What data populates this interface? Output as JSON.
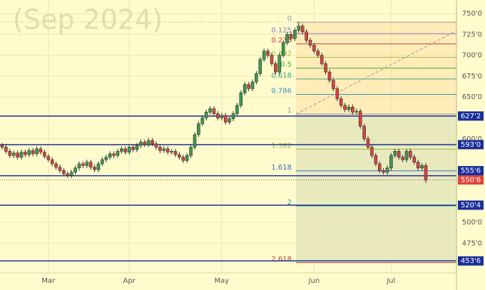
{
  "chart_data": {
    "type": "candlestick",
    "watermark": "(Sep 2024)",
    "categories": [
      null,
      null,
      null,
      null,
      null,
      null,
      null,
      null,
      null,
      null,
      null,
      null,
      "Mar",
      null,
      null,
      null,
      null,
      null,
      null,
      null,
      null,
      null,
      null,
      null,
      null,
      null,
      null,
      null,
      null,
      null,
      null,
      null,
      null,
      "Apr",
      null,
      null,
      null,
      null,
      null,
      null,
      null,
      null,
      null,
      null,
      null,
      null,
      null,
      null,
      null,
      null,
      null,
      null,
      null,
      null,
      null,
      null,
      null,
      "May",
      null,
      null,
      null,
      null,
      null,
      null,
      null,
      null,
      null,
      null,
      null,
      null,
      null,
      null,
      null,
      null,
      null,
      null,
      null,
      null,
      null,
      null,
      null,
      "Jun",
      null,
      null,
      null,
      null,
      null,
      null,
      null,
      null,
      null,
      null,
      null,
      null,
      null,
      null,
      null,
      null,
      null,
      null,
      null,
      "Jul",
      null,
      null,
      null,
      null,
      null,
      null,
      null,
      null,
      null
    ],
    "open": [
      592,
      590,
      585,
      580,
      583,
      578,
      584,
      581,
      586,
      582,
      588,
      584,
      579,
      575,
      570,
      566,
      562,
      558,
      556,
      560,
      565,
      570,
      568,
      572,
      566,
      563,
      570,
      575,
      578,
      582,
      580,
      585,
      588,
      584,
      590,
      587,
      592,
      596,
      593,
      598,
      594,
      590,
      586,
      588,
      584,
      585,
      581,
      578,
      574,
      580,
      590,
      605,
      618,
      625,
      632,
      636,
      630,
      625,
      628,
      620,
      624,
      630,
      640,
      655,
      665,
      660,
      668,
      678,
      695,
      705,
      700,
      690,
      680,
      700,
      715,
      725,
      720,
      730,
      735,
      728,
      718,
      712,
      705,
      700,
      690,
      680,
      670,
      660,
      648,
      640,
      635,
      638,
      632,
      633,
      615,
      600,
      590,
      580,
      570,
      562,
      560,
      565,
      580,
      585,
      578,
      575,
      585,
      578,
      572,
      565,
      568
    ],
    "high": [
      595,
      593,
      588,
      586,
      586,
      587,
      587,
      589,
      589,
      591,
      591,
      587,
      582,
      578,
      573,
      569,
      565,
      561,
      563,
      568,
      573,
      573,
      575,
      575,
      569,
      573,
      578,
      581,
      585,
      585,
      588,
      591,
      591,
      593,
      593,
      595,
      599,
      599,
      601,
      601,
      597,
      593,
      591,
      591,
      588,
      588,
      584,
      581,
      583,
      593,
      608,
      621,
      628,
      635,
      639,
      639,
      633,
      631,
      631,
      627,
      633,
      643,
      658,
      668,
      668,
      671,
      681,
      698,
      708,
      708,
      703,
      693,
      703,
      718,
      728,
      728,
      733,
      740,
      738,
      731,
      721,
      715,
      708,
      703,
      693,
      683,
      673,
      663,
      651,
      643,
      641,
      641,
      636,
      636,
      618,
      603,
      593,
      583,
      573,
      565,
      568,
      583,
      588,
      588,
      581,
      588,
      588,
      581,
      575,
      571,
      571
    ],
    "low": [
      587,
      582,
      577,
      577,
      575,
      575,
      578,
      578,
      579,
      579,
      581,
      576,
      572,
      567,
      563,
      559,
      555,
      553,
      553,
      557,
      562,
      565,
      565,
      563,
      560,
      560,
      567,
      572,
      575,
      577,
      577,
      582,
      581,
      581,
      584,
      584,
      589,
      590,
      590,
      591,
      587,
      583,
      583,
      581,
      581,
      578,
      575,
      571,
      571,
      577,
      587,
      602,
      615,
      622,
      629,
      627,
      622,
      622,
      617,
      617,
      621,
      627,
      637,
      652,
      657,
      657,
      665,
      675,
      692,
      697,
      687,
      677,
      677,
      697,
      712,
      717,
      717,
      727,
      725,
      715,
      709,
      702,
      697,
      687,
      677,
      667,
      657,
      645,
      637,
      632,
      632,
      629,
      629,
      612,
      597,
      587,
      577,
      567,
      559,
      557,
      557,
      562,
      577,
      575,
      572,
      572,
      575,
      569,
      562,
      562,
      547
    ],
    "close": [
      590,
      585,
      580,
      583,
      578,
      584,
      581,
      586,
      582,
      588,
      584,
      579,
      575,
      570,
      566,
      562,
      558,
      556,
      560,
      565,
      570,
      568,
      572,
      566,
      563,
      570,
      575,
      578,
      582,
      580,
      585,
      588,
      584,
      590,
      587,
      592,
      596,
      593,
      598,
      594,
      590,
      586,
      588,
      584,
      585,
      581,
      578,
      574,
      580,
      590,
      605,
      618,
      625,
      632,
      636,
      630,
      625,
      628,
      620,
      624,
      630,
      640,
      655,
      665,
      660,
      668,
      678,
      695,
      705,
      700,
      690,
      680,
      700,
      715,
      725,
      720,
      730,
      735,
      728,
      718,
      712,
      705,
      700,
      690,
      680,
      670,
      660,
      648,
      640,
      635,
      638,
      632,
      633,
      615,
      600,
      590,
      580,
      570,
      562,
      560,
      565,
      580,
      585,
      578,
      575,
      585,
      578,
      572,
      565,
      568,
      550.75
    ],
    "up_color": "#3d9a4e",
    "down_color": "#d8443c",
    "ylim": [
      439.4,
      766.2
    ],
    "yticks": [
      {
        "value": 750,
        "label": "750'0"
      },
      {
        "value": 725,
        "label": "725'0"
      },
      {
        "value": 700,
        "label": "700'0"
      },
      {
        "value": 675,
        "label": "675'0"
      },
      {
        "value": 650,
        "label": "650'0"
      },
      {
        "value": 600,
        "label": "600'0"
      },
      {
        "value": 500,
        "label": "500'0"
      },
      {
        "value": 475,
        "label": "475'0"
      }
    ],
    "grid": true,
    "price_lines": [
      {
        "value": 627.25,
        "label": "627'2"
      },
      {
        "value": 593,
        "label": "593'0"
      },
      {
        "value": 555.75,
        "label": "555'6"
      },
      {
        "value": 520.5,
        "label": "520'4"
      },
      {
        "value": 453.75,
        "label": "453'6"
      }
    ],
    "line_color": "#1a2f9a",
    "last_price": {
      "value": 550.75,
      "label": "550'6",
      "color": "#e0453a"
    },
    "fib_levels": [
      {
        "value": 739.6,
        "label": "0",
        "color": "#999999"
      },
      {
        "value": 725.85,
        "label": "0.125",
        "color": "#8a7fc0"
      },
      {
        "value": 713.64,
        "label": "0.236",
        "color": "#c04040"
      },
      {
        "value": 697.58,
        "label": "0.382",
        "color": "#9bc040"
      },
      {
        "value": 684.6,
        "label": "0.5",
        "color": "#3fb040"
      },
      {
        "value": 671.62,
        "label": "0.618",
        "color": "#3aa880"
      },
      {
        "value": 653.14,
        "label": "0.786",
        "color": "#3a90c0"
      },
      {
        "value": 629.6,
        "label": "1",
        "color": "#999999"
      },
      {
        "value": 587.58,
        "label": "1.382",
        "color": "#9bc040"
      },
      {
        "value": 561.62,
        "label": "1.618",
        "color": "#3a70c0"
      },
      {
        "value": 519.6,
        "label": "2",
        "color": "#30a0a0"
      },
      {
        "value": 451.62,
        "label": "2.618",
        "color": "#c04040"
      }
    ]
  }
}
